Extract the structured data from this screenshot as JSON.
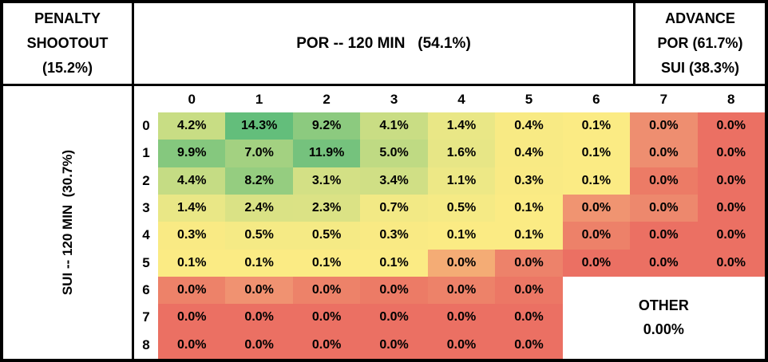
{
  "penalty_box": {
    "line1": "PENALTY",
    "line2": "SHOOTOUT",
    "line3": "(15.2%)"
  },
  "top_axis_label": "POR -- 120 MIN   (54.1%)",
  "advance_box": {
    "line1": "ADVANCE",
    "line2": "POR (61.7%)",
    "line3": "SUI (38.3%)"
  },
  "left_axis_label": "SUI -- 120 MIN  (30.7%)",
  "other_box": {
    "label": "OTHER",
    "value": "0.00%"
  },
  "colors": {
    "border": "#000000",
    "background": "#ffffff",
    "heat_max_green": "#63BE7B",
    "heat_mid_yellow": "#FBEB84",
    "heat_min_red": "#EB7063"
  },
  "chart_data": {
    "type": "heatmap",
    "title": "POR vs SUI full score probability matrix (120 min)",
    "x_label": "POR -- 120 MIN",
    "x_total": "54.1%",
    "y_label": "SUI -- 120 MIN",
    "y_total": "30.7%",
    "penalty_shootout_pct": "15.2%",
    "advance": {
      "POR": "61.7%",
      "SUI": "38.3%"
    },
    "other_pct": "0.00%",
    "columns": [
      "0",
      "1",
      "2",
      "3",
      "4",
      "5",
      "6",
      "7",
      "8"
    ],
    "rows": [
      "0",
      "1",
      "2",
      "3",
      "4",
      "5",
      "6",
      "7",
      "8"
    ],
    "cells": [
      [
        {
          "v": "4.2%",
          "bg": "#C8DD84"
        },
        {
          "v": "14.3%",
          "bg": "#63BE7B"
        },
        {
          "v": "9.2%",
          "bg": "#8CCA7F"
        },
        {
          "v": "4.1%",
          "bg": "#C9DD84"
        },
        {
          "v": "1.4%",
          "bg": "#E9E786"
        },
        {
          "v": "0.4%",
          "bg": "#F8EA84"
        },
        {
          "v": "0.1%",
          "bg": "#FBEB84"
        },
        {
          "v": "0.0%",
          "bg": "#EE8E70"
        },
        {
          "v": "0.0%",
          "bg": "#EB7063"
        }
      ],
      [
        {
          "v": "9.9%",
          "bg": "#85C87E"
        },
        {
          "v": "7.0%",
          "bg": "#A3D181"
        },
        {
          "v": "11.9%",
          "bg": "#75C27D"
        },
        {
          "v": "5.0%",
          "bg": "#BFDA83"
        },
        {
          "v": "1.6%",
          "bg": "#E7E686"
        },
        {
          "v": "0.4%",
          "bg": "#F8EA84"
        },
        {
          "v": "0.1%",
          "bg": "#FBEB84"
        },
        {
          "v": "0.0%",
          "bg": "#EE8E70"
        },
        {
          "v": "0.0%",
          "bg": "#EB7063"
        }
      ],
      [
        {
          "v": "4.4%",
          "bg": "#C5DC84"
        },
        {
          "v": "8.2%",
          "bg": "#95CD80"
        },
        {
          "v": "3.1%",
          "bg": "#D3E085"
        },
        {
          "v": "3.4%",
          "bg": "#D0DF85"
        },
        {
          "v": "1.1%",
          "bg": "#EDE886"
        },
        {
          "v": "0.3%",
          "bg": "#F9EA84"
        },
        {
          "v": "0.1%",
          "bg": "#FBEB84"
        },
        {
          "v": "0.0%",
          "bg": "#EC7B66"
        },
        {
          "v": "0.0%",
          "bg": "#EB7063"
        }
      ],
      [
        {
          "v": "1.4%",
          "bg": "#E9E786"
        },
        {
          "v": "2.4%",
          "bg": "#DAE285"
        },
        {
          "v": "2.3%",
          "bg": "#DBE285"
        },
        {
          "v": "0.7%",
          "bg": "#F2E985"
        },
        {
          "v": "0.5%",
          "bg": "#F5EA85"
        },
        {
          "v": "0.1%",
          "bg": "#FBEB84"
        },
        {
          "v": "0.0%",
          "bg": "#F09471"
        },
        {
          "v": "0.0%",
          "bg": "#ED886D"
        },
        {
          "v": "0.0%",
          "bg": "#EB7063"
        }
      ],
      [
        {
          "v": "0.3%",
          "bg": "#F9EA84"
        },
        {
          "v": "0.5%",
          "bg": "#F5EA85"
        },
        {
          "v": "0.5%",
          "bg": "#F5EA85"
        },
        {
          "v": "0.3%",
          "bg": "#F9EA84"
        },
        {
          "v": "0.1%",
          "bg": "#FBEB84"
        },
        {
          "v": "0.1%",
          "bg": "#FBEB84"
        },
        {
          "v": "0.0%",
          "bg": "#ED8169"
        },
        {
          "v": "0.0%",
          "bg": "#EB7063"
        },
        {
          "v": "0.0%",
          "bg": "#EB7063"
        }
      ],
      [
        {
          "v": "0.1%",
          "bg": "#FBEB84"
        },
        {
          "v": "0.1%",
          "bg": "#FBEB84"
        },
        {
          "v": "0.1%",
          "bg": "#FBEB84"
        },
        {
          "v": "0.1%",
          "bg": "#FBEB84"
        },
        {
          "v": "0.0%",
          "bg": "#F4AC75"
        },
        {
          "v": "0.0%",
          "bg": "#ED826A"
        },
        {
          "v": "0.0%",
          "bg": "#EB7063"
        },
        {
          "v": "0.0%",
          "bg": "#EB7063"
        },
        {
          "v": "0.0%",
          "bg": "#EB7063"
        }
      ],
      [
        {
          "v": "0.0%",
          "bg": "#ED8269"
        },
        {
          "v": "0.0%",
          "bg": "#F09271"
        },
        {
          "v": "0.0%",
          "bg": "#ED8269"
        },
        {
          "v": "0.0%",
          "bg": "#EC7B66"
        },
        {
          "v": "0.0%",
          "bg": "#ED8269"
        },
        {
          "v": "0.0%",
          "bg": "#EC7765"
        },
        null,
        null,
        null
      ],
      [
        {
          "v": "0.0%",
          "bg": "#EB7063"
        },
        {
          "v": "0.0%",
          "bg": "#EB7063"
        },
        {
          "v": "0.0%",
          "bg": "#EB7063"
        },
        {
          "v": "0.0%",
          "bg": "#EB7063"
        },
        {
          "v": "0.0%",
          "bg": "#EB7063"
        },
        {
          "v": "0.0%",
          "bg": "#EB7063"
        },
        null,
        null,
        null
      ],
      [
        {
          "v": "0.0%",
          "bg": "#EB7063"
        },
        {
          "v": "0.0%",
          "bg": "#EB7063"
        },
        {
          "v": "0.0%",
          "bg": "#EB7063"
        },
        {
          "v": "0.0%",
          "bg": "#EB7063"
        },
        {
          "v": "0.0%",
          "bg": "#EB7063"
        },
        {
          "v": "0.0%",
          "bg": "#EB7063"
        },
        null,
        null,
        null
      ]
    ]
  }
}
